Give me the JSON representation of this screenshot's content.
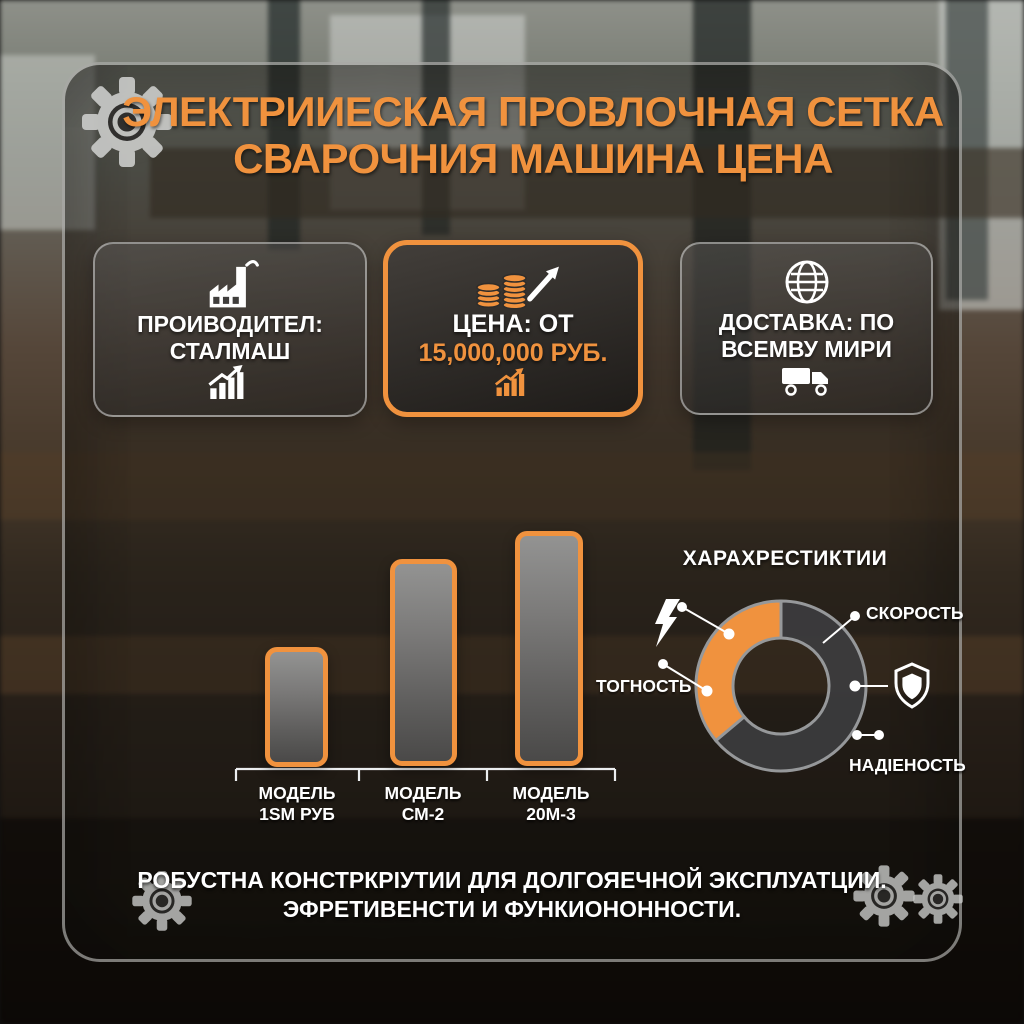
{
  "accent_color": "#F0923E",
  "title": {
    "line1": "ЭЛЕКТРИИЕСКАЯ ПРОВЛОЧНАЯ СЕТКА",
    "line2": "СВАРОЧНИЯ МАШИНА ЦЕНА",
    "color": "#F0923E"
  },
  "cards": [
    {
      "icon": "factory-icon",
      "line1": "ПРОИВОДИТЕЛ:",
      "line2": "СТАЛМАШ",
      "footer_icon": "growth-chart-icon",
      "highlighted": false
    },
    {
      "icon": "coins-arrow-icon",
      "line1": "ЦЕНА: ОТ",
      "line2": "15,000,000 РУБ.",
      "footer_icon": "growth-chart-icon",
      "highlighted": true
    },
    {
      "icon": "globe-icon",
      "line1": "ДОСТАВКА: ПО",
      "line2": "ВСЕМВУ МИРИ",
      "footer_icon": "truck-icon",
      "highlighted": false
    }
  ],
  "footer": {
    "line1": "РОБУСТНА КОНСТРКРІУТИИ ДЛЯ ДОЛГОЯЕЧНОЙ ЭКСПЛУАТЦИИ.",
    "line2": "ЭФРЕТИВЕНСТИ И ФУНКИОНОННОСТИ."
  },
  "decorations": {
    "corner_icons": [
      "gear-icon",
      "gear-icon",
      "gear-icon",
      "gear-icon"
    ]
  },
  "chart_data": [
    {
      "type": "bar",
      "title": "",
      "categories": [
        {
          "line1": "МОДЕЛЬ",
          "line2": "1SM РУБ"
        },
        {
          "line1": "МОДЕЛЬ",
          "line2": "СМ-2"
        },
        {
          "line1": "МОДЕЛЬ",
          "line2": "20М-3"
        }
      ],
      "values_relative_percent": [
        51,
        88,
        100
      ],
      "ylim": [
        0,
        100
      ],
      "grid": false,
      "bar_border_color": "#F0923E",
      "bar_fill_top": "#939392",
      "bar_fill_bottom": "#4A4948",
      "note": "no numeric axis labels shown; bar heights are relative"
    },
    {
      "type": "pie",
      "donut": true,
      "title": "ХАРАХРЕСТИКТИИ",
      "segments": [
        {
          "label": "highlight",
          "percent": 36,
          "start_deg": 230,
          "end_deg": 360,
          "color": "#F0923E"
        },
        {
          "label": "base",
          "percent": 64,
          "start_deg": 0,
          "end_deg": 230,
          "color": "#3C3C3E"
        }
      ],
      "ring_color": "#96989A",
      "callout_labels": {
        "right": "СКОРОСТЬ",
        "left": "ТОГНОСТЬ",
        "bottom": "НАДІЕНОСТЬ"
      },
      "callout_icons": [
        "lightning-icon",
        "shield-icon"
      ],
      "legend_position": "around"
    }
  ]
}
